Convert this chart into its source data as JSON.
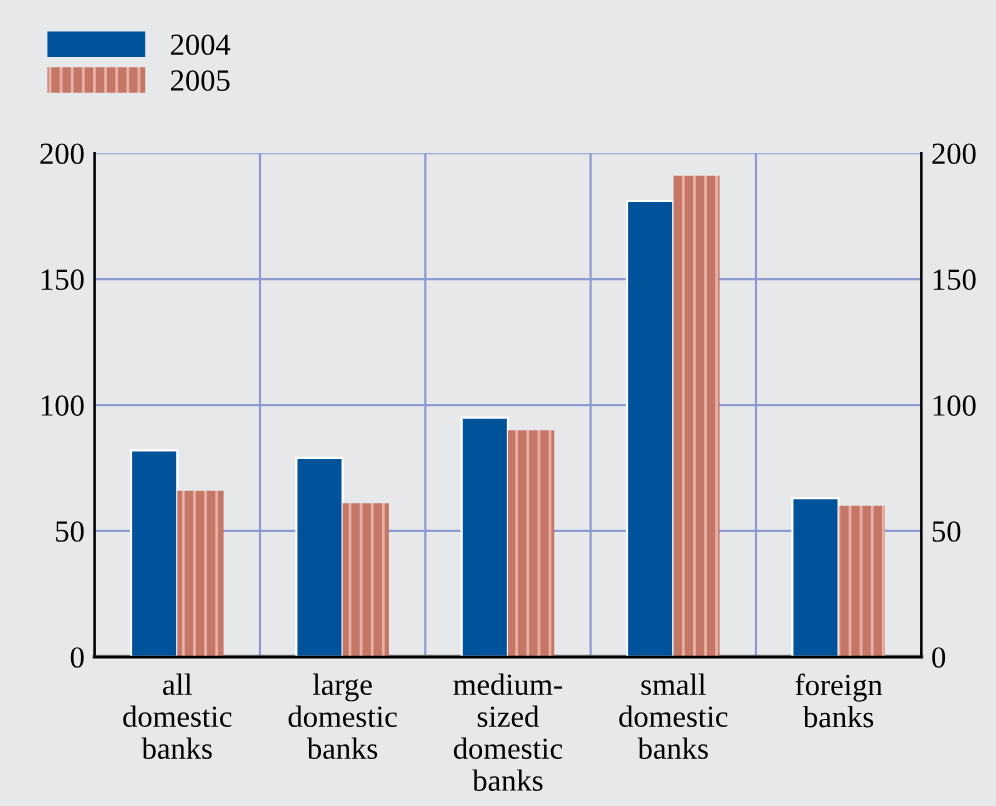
{
  "chart_data": {
    "type": "bar",
    "categories": [
      "all\ndomestic\nbanks",
      "large\ndomestic\nbanks",
      "medium-\nsized\ndomestic\nbanks",
      "small\ndomestic\nbanks",
      "foreign\nbanks"
    ],
    "series": [
      {
        "name": "2004",
        "color": "#00529b",
        "values": [
          82,
          79,
          95,
          181,
          63
        ]
      },
      {
        "name": "2005",
        "color": "#c47767",
        "values": [
          66,
          61,
          90,
          191,
          60
        ]
      }
    ],
    "ylim": [
      0,
      200
    ],
    "yticks": [
      0,
      50,
      100,
      150,
      200
    ],
    "y2lim": [
      0,
      200
    ],
    "y2ticks": [
      0,
      50,
      100,
      150,
      200
    ],
    "grid": true,
    "legend": "top left"
  }
}
